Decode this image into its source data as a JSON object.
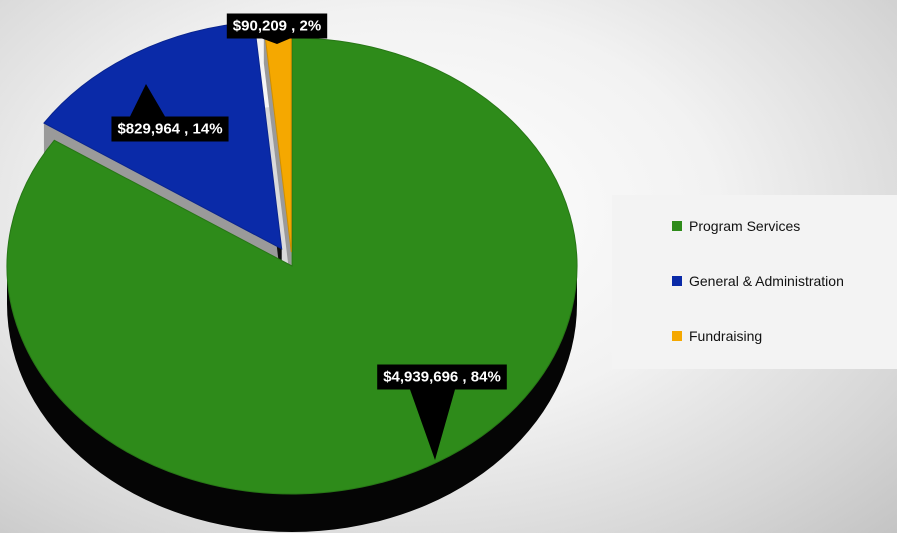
{
  "chart_data": {
    "type": "pie",
    "title": "",
    "categories": [
      "Program Services",
      "General & Administration",
      "Fundraising"
    ],
    "values": [
      4939696,
      829964,
      90209
    ],
    "percentages": [
      84,
      14,
      2
    ],
    "colors": [
      "#2e8b1a",
      "#0a2aa8",
      "#f5a800"
    ],
    "data_labels": [
      "$4,939,696 , 84%",
      "$829,964 , 14%",
      "$90,209 , 2%"
    ],
    "style": "3d-exploded",
    "legend": {
      "position": "right",
      "entries": [
        "Program Services",
        "General & Administration",
        "Fundraising"
      ]
    }
  }
}
